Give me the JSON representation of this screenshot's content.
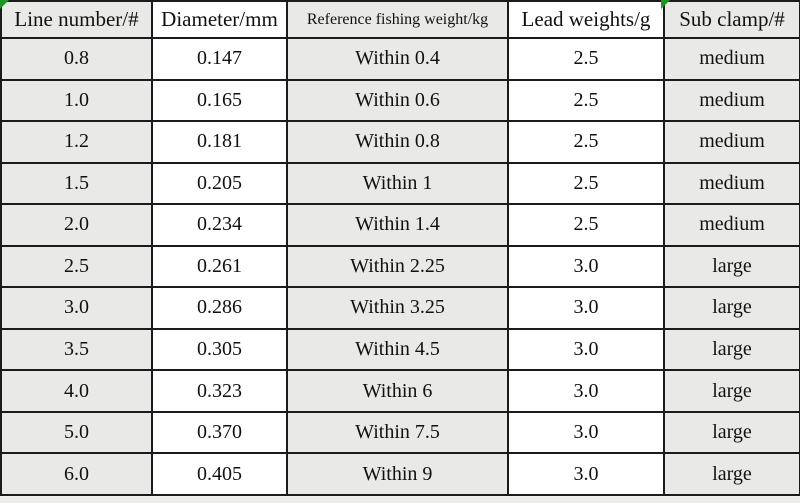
{
  "colors": {
    "cell_gray": "#e9e9e7",
    "cell_white": "#ffffff",
    "border_black": "#1b1b1b",
    "corner_mark_green": "#1f9324",
    "text": "#111111"
  },
  "chart_data": {
    "type": "table",
    "title": "",
    "columns": [
      "Line number/#",
      "Diameter/mm",
      "Reference fishing weight/kg",
      "Lead weights/g",
      "Sub clamp/#"
    ],
    "rows": [
      [
        "0.8",
        "0.147",
        "Within 0.4",
        "2.5",
        "medium"
      ],
      [
        "1.0",
        "0.165",
        "Within 0.6",
        "2.5",
        "medium"
      ],
      [
        "1.2",
        "0.181",
        "Within 0.8",
        "2.5",
        "medium"
      ],
      [
        "1.5",
        "0.205",
        "Within 1",
        "2.5",
        "medium"
      ],
      [
        "2.0",
        "0.234",
        "Within 1.4",
        "2.5",
        "medium"
      ],
      [
        "2.5",
        "0.261",
        "Within 2.25",
        "3.0",
        "large"
      ],
      [
        "3.0",
        "0.286",
        "Within 3.25",
        "3.0",
        "large"
      ],
      [
        "3.5",
        "0.305",
        "Within 4.5",
        "3.0",
        "large"
      ],
      [
        "4.0",
        "0.323",
        "Within 6",
        "3.0",
        "large"
      ],
      [
        "5.0",
        "0.370",
        "Within 7.5",
        "3.0",
        "large"
      ],
      [
        "6.0",
        "0.405",
        "Within 9",
        "3.0",
        "large"
      ]
    ]
  }
}
